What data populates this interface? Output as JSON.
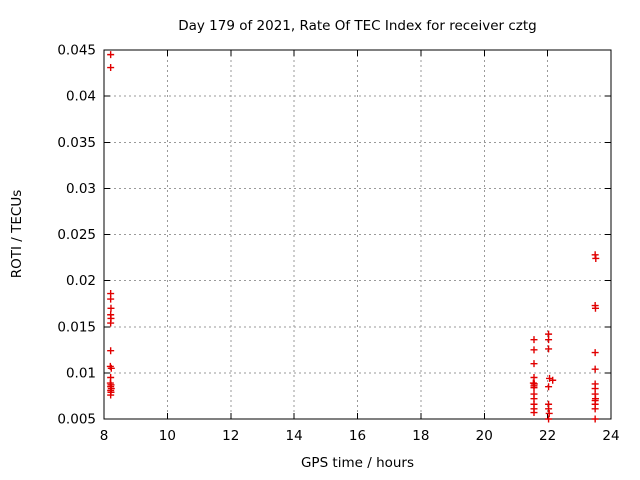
{
  "chart_data": {
    "type": "scatter",
    "title": "Day 179 of 2021, Rate Of TEC Index for receiver cztg",
    "xlabel": "GPS time / hours",
    "ylabel": "ROTI / TECUs",
    "xlim": [
      8,
      24
    ],
    "ylim": [
      0.005,
      0.045
    ],
    "x_ticks": [
      8,
      10,
      12,
      14,
      16,
      18,
      20,
      22,
      24
    ],
    "x_tick_labels": [
      "8",
      "10",
      "12",
      "14",
      "16",
      "18",
      "20",
      "22",
      "24"
    ],
    "y_ticks": [
      0.005,
      0.01,
      0.015,
      0.02,
      0.025,
      0.03,
      0.035,
      0.04,
      0.045
    ],
    "y_tick_labels": [
      "0.005",
      "0.01",
      "0.015",
      "0.02",
      "0.025",
      "0.03",
      "0.035",
      "0.04",
      "0.045"
    ],
    "grid": true,
    "legend": "none",
    "marker": "plus",
    "series": [
      {
        "name": "ROTI",
        "points": [
          [
            8.21,
            0.0445
          ],
          [
            8.21,
            0.0431
          ],
          [
            8.21,
            0.0186
          ],
          [
            8.21,
            0.018
          ],
          [
            8.22,
            0.017
          ],
          [
            8.21,
            0.0163
          ],
          [
            8.22,
            0.0159
          ],
          [
            8.21,
            0.0154
          ],
          [
            8.21,
            0.0124
          ],
          [
            8.2,
            0.0107
          ],
          [
            8.23,
            0.0105
          ],
          [
            8.21,
            0.0095
          ],
          [
            8.2,
            0.0089
          ],
          [
            8.22,
            0.0087
          ],
          [
            8.21,
            0.0085
          ],
          [
            8.23,
            0.0083
          ],
          [
            8.21,
            0.0081
          ],
          [
            8.22,
            0.0079
          ],
          [
            8.21,
            0.0076
          ],
          [
            21.57,
            0.0136
          ],
          [
            21.57,
            0.0125
          ],
          [
            21.57,
            0.011
          ],
          [
            21.57,
            0.0095
          ],
          [
            21.55,
            0.0089
          ],
          [
            21.58,
            0.0088
          ],
          [
            21.57,
            0.0086
          ],
          [
            21.57,
            0.0084
          ],
          [
            21.57,
            0.0077
          ],
          [
            21.57,
            0.0072
          ],
          [
            21.57,
            0.0066
          ],
          [
            21.57,
            0.0061
          ],
          [
            21.57,
            0.0057
          ],
          [
            22.03,
            0.0142
          ],
          [
            22.03,
            0.0136
          ],
          [
            22.03,
            0.0126
          ],
          [
            22.06,
            0.0094
          ],
          [
            22.16,
            0.0092
          ],
          [
            22.03,
            0.0085
          ],
          [
            22.03,
            0.0066
          ],
          [
            22.03,
            0.0061
          ],
          [
            22.05,
            0.0056
          ],
          [
            22.03,
            0.005
          ],
          [
            23.5,
            0.0228
          ],
          [
            23.52,
            0.0224
          ],
          [
            23.5,
            0.0173
          ],
          [
            23.51,
            0.017
          ],
          [
            23.5,
            0.0122
          ],
          [
            23.5,
            0.0104
          ],
          [
            23.5,
            0.0088
          ],
          [
            23.5,
            0.0083
          ],
          [
            23.5,
            0.0077
          ],
          [
            23.51,
            0.0072
          ],
          [
            23.5,
            0.007
          ],
          [
            23.5,
            0.0066
          ],
          [
            23.5,
            0.0061
          ],
          [
            23.5,
            0.005
          ]
        ]
      }
    ]
  },
  "colors": {
    "background": "#ffffff",
    "axis": "#000000",
    "grid": "#9a9a9a",
    "marker": "#e10000"
  }
}
